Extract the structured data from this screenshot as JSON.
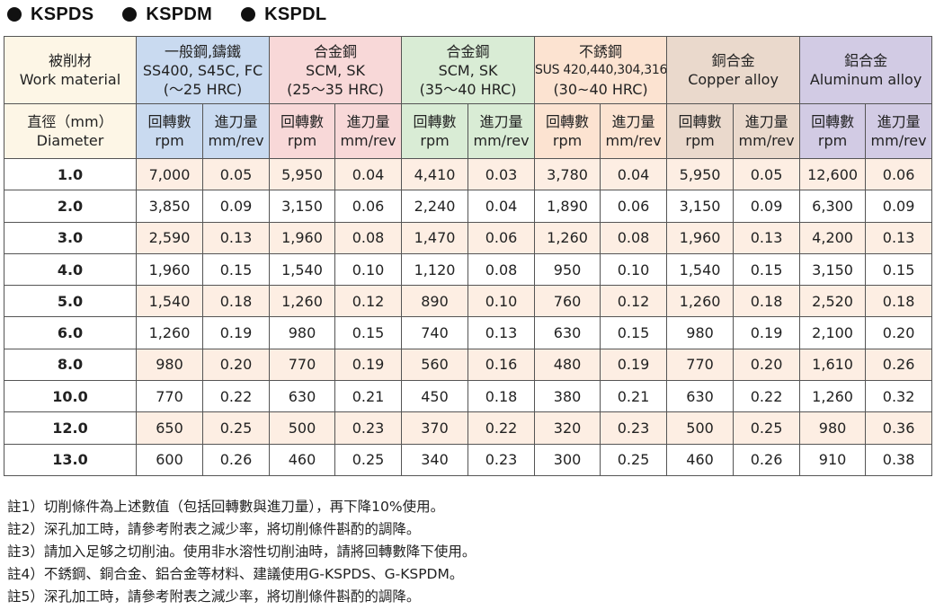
{
  "tabs": [
    "KSPDS",
    "KSPDM",
    "KSPDL"
  ],
  "table": {
    "corner": {
      "line1": "被削材",
      "line2": "Work material"
    },
    "diameter_header": {
      "line1": "直徑（mm）",
      "line2": "Diameter"
    },
    "groups": [
      {
        "lines": [
          "一般鋼,鑄鐵",
          "SS400, S45C, FC",
          "(～25 HRC)"
        ],
        "color": "#c9daf0"
      },
      {
        "lines": [
          "合金鋼",
          "SCM, SK",
          "(25～35 HRC)"
        ],
        "color": "#f8d8d8"
      },
      {
        "lines": [
          "合金鋼",
          "SCM, SK",
          "(35～40 HRC)"
        ],
        "color": "#d9ecd5"
      },
      {
        "lines": [
          "不銹鋼",
          "SUS 420,440,304,316",
          "(30~40 HRC)"
        ],
        "color": "#fce3d1"
      },
      {
        "lines": [
          "銅合金",
          "Copper alloy"
        ],
        "color": "#ead9cc"
      },
      {
        "lines": [
          "鋁合金",
          "Aluminum alloy"
        ],
        "color": "#d2cbe4"
      }
    ],
    "sub_headers": {
      "rpm": {
        "line1": "回轉數",
        "line2": "rpm"
      },
      "feed": {
        "line1": "進刀量",
        "line2": "mm/rev"
      }
    },
    "rows": [
      {
        "dia": "1.0",
        "cells": [
          "7,000",
          "0.05",
          "5,950",
          "0.04",
          "4,410",
          "0.03",
          "3,780",
          "0.04",
          "5,950",
          "0.05",
          "12,600",
          "0.06"
        ]
      },
      {
        "dia": "2.0",
        "cells": [
          "3,850",
          "0.09",
          "3,150",
          "0.06",
          "2,240",
          "0.04",
          "1,890",
          "0.06",
          "3,150",
          "0.09",
          "6,300",
          "0.09"
        ]
      },
      {
        "dia": "3.0",
        "cells": [
          "2,590",
          "0.13",
          "1,960",
          "0.08",
          "1,470",
          "0.06",
          "1,260",
          "0.08",
          "1,960",
          "0.13",
          "4,200",
          "0.13"
        ]
      },
      {
        "dia": "4.0",
        "cells": [
          "1,960",
          "0.15",
          "1,540",
          "0.10",
          "1,120",
          "0.08",
          "950",
          "0.10",
          "1,540",
          "0.15",
          "3,150",
          "0.15"
        ]
      },
      {
        "dia": "5.0",
        "cells": [
          "1,540",
          "0.18",
          "1,260",
          "0.12",
          "890",
          "0.10",
          "760",
          "0.12",
          "1,260",
          "0.18",
          "2,520",
          "0.18"
        ]
      },
      {
        "dia": "6.0",
        "cells": [
          "1,260",
          "0.19",
          "980",
          "0.15",
          "740",
          "0.13",
          "630",
          "0.15",
          "980",
          "0.19",
          "2,100",
          "0.20"
        ]
      },
      {
        "dia": "8.0",
        "cells": [
          "980",
          "0.20",
          "770",
          "0.19",
          "560",
          "0.16",
          "480",
          "0.19",
          "770",
          "0.20",
          "1,610",
          "0.26"
        ]
      },
      {
        "dia": "10.0",
        "cells": [
          "770",
          "0.22",
          "630",
          "0.21",
          "450",
          "0.18",
          "380",
          "0.21",
          "630",
          "0.22",
          "1,260",
          "0.32"
        ]
      },
      {
        "dia": "12.0",
        "cells": [
          "650",
          "0.25",
          "500",
          "0.23",
          "370",
          "0.22",
          "320",
          "0.23",
          "500",
          "0.25",
          "980",
          "0.36"
        ]
      },
      {
        "dia": "13.0",
        "cells": [
          "600",
          "0.26",
          "460",
          "0.25",
          "340",
          "0.23",
          "300",
          "0.25",
          "460",
          "0.26",
          "910",
          "0.38"
        ]
      }
    ]
  },
  "notes": [
    "註1）切削條件為上述數值（包括回轉數與進刀量），再下降10%使用。",
    "註2）深孔加工時，請參考附表之減少率，將切削條件斟酌的調降。",
    "註3）請加入足够之切削油。使用非水溶性切削油時，請將回轉數降下使用。",
    "註4）不銹鋼、銅合金、鋁合金等材料、建議使用G-KSPDS、G-KSPDM。",
    "註5）深孔加工時，請參考附表之減少率，將切削條件斟酌的調降。"
  ]
}
